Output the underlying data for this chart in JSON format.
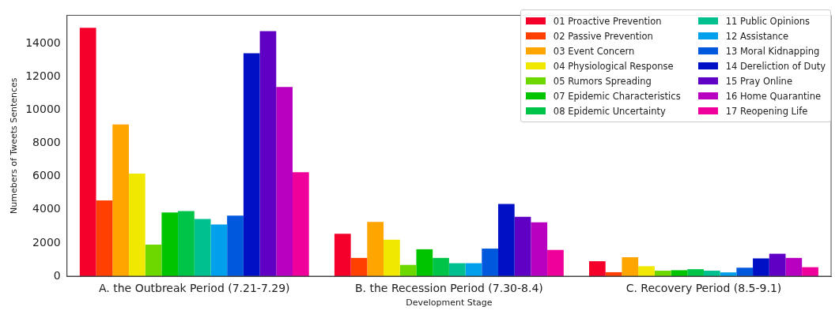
{
  "chart_data": {
    "type": "bar",
    "xlabel": "Development Stage",
    "ylabel": "Numebers of Tweets Sentences",
    "categories": [
      "A. the Outbreak Period (7.21-7.29)",
      "B. the Recession Period (7.30-8.4)",
      "C. Recovery Period (8.5-9.1)"
    ],
    "ylim": [
      0,
      15700
    ],
    "yticks": [
      0,
      2000,
      4000,
      6000,
      8000,
      10000,
      12000,
      14000
    ],
    "grid": false,
    "legend": "top right",
    "series": [
      {
        "name": "01 Proactive Prevention",
        "color": "#f5002a",
        "values": [
          14950,
          2550,
          900
        ]
      },
      {
        "name": "02 Passive Prevention",
        "color": "#ff4000",
        "values": [
          4560,
          1100,
          240
        ]
      },
      {
        "name": "03 Event Concern",
        "color": "#ffa500",
        "values": [
          9130,
          3270,
          1140
        ]
      },
      {
        "name": "04 Physiological Response",
        "color": "#f0e800",
        "values": [
          6170,
          2200,
          600
        ]
      },
      {
        "name": "05 Rumors Spreading",
        "color": "#6cd800",
        "values": [
          1900,
          680,
          330
        ]
      },
      {
        "name": "07 Epidemic Characteristics",
        "color": "#00c400",
        "values": [
          3840,
          1620,
          360
        ]
      },
      {
        "name": "08 Epidemic Uncertainty",
        "color": "#00c448",
        "values": [
          3920,
          1100,
          420
        ]
      },
      {
        "name": "11 Public Opinions",
        "color": "#00c090",
        "values": [
          3440,
          780,
          330
        ]
      },
      {
        "name": "12 Assistance",
        "color": "#00a0ec",
        "values": [
          3110,
          780,
          230
        ]
      },
      {
        "name": "13 Moral Kidnapping",
        "color": "#0058dc",
        "values": [
          3640,
          1660,
          510
        ]
      },
      {
        "name": "14 Dereliction of Duty",
        "color": "#0010c4",
        "values": [
          13410,
          4340,
          1070
        ]
      },
      {
        "name": "15 Pray Online",
        "color": "#6000c4",
        "values": [
          14740,
          3570,
          1350
        ]
      },
      {
        "name": "16 Home Quarantine",
        "color": "#b800c0",
        "values": [
          11380,
          3240,
          1100
        ]
      },
      {
        "name": "17 Reopening Life",
        "color": "#f0009a",
        "values": [
          6260,
          1580,
          540
        ]
      }
    ]
  }
}
